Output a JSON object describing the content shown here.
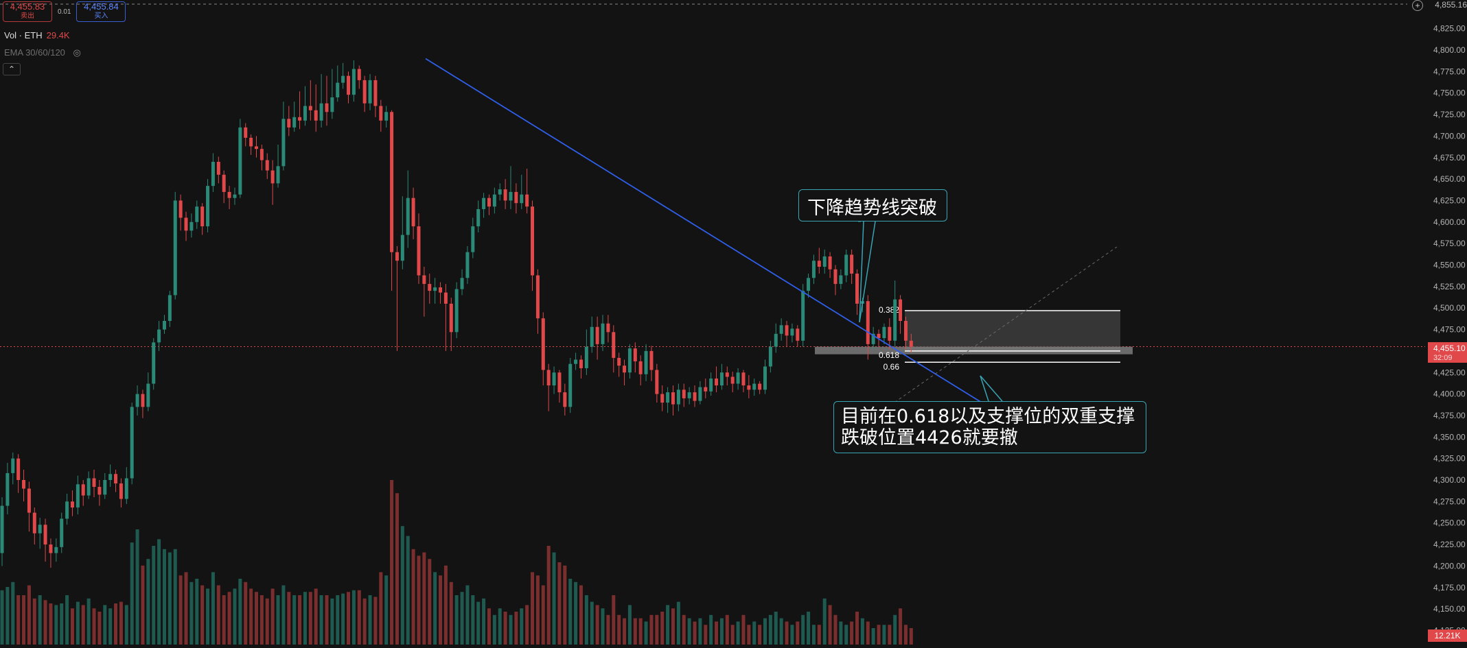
{
  "header": {
    "sell_price": "4,455.83",
    "sell_label": "卖出",
    "spread": "0.01",
    "buy_price": "4,455.84",
    "buy_label": "买入"
  },
  "legend": {
    "vol_label": "Vol · ETH",
    "vol_value": "29.4K",
    "ema_label": "EMA 30/60/120"
  },
  "price_axis": {
    "ticks": [
      "4,825.00",
      "4,800.00",
      "4,775.00",
      "4,750.00",
      "4,725.00",
      "4,700.00",
      "4,675.00",
      "4,650.00",
      "4,625.00",
      "4,600.00",
      "4,575.00",
      "4,550.00",
      "4,525.00",
      "4,500.00",
      "4,475.00",
      "4,450.00",
      "4,425.00",
      "4,400.00",
      "4,375.00",
      "4,350.00",
      "4,325.00",
      "4,300.00",
      "4,275.00",
      "4,250.00",
      "4,225.00",
      "4,200.00",
      "4,175.00",
      "4,150.00",
      "4,125.00"
    ],
    "top_label": "4,855.16",
    "current_price": "4,455.10",
    "countdown": "32:09",
    "volume_label": "12.21K"
  },
  "fib_labels": {
    "l0382": "0.382",
    "l0618": "0.618",
    "l066": "0.66"
  },
  "annotations": {
    "trendline_break": "下降趋势线突破",
    "support_line1": "目前在0.618以及支撑位的双重支撑",
    "support_line2": "跌破位置4426就要撤"
  },
  "colors": {
    "background": "#131313",
    "up": "#2b8a77",
    "down": "#e0484a",
    "trendline": "#2f5fe8",
    "annotation_border": "#39a4b4"
  },
  "chart_data": {
    "type": "candlestick",
    "symbol": "ETH",
    "ylim": [
      4125,
      4835
    ],
    "levels": [
      {
        "name": "0.382",
        "value": 4497
      },
      {
        "name": "0.618",
        "value": 4450
      },
      {
        "name": "0.66",
        "value": 4437
      },
      {
        "name": "support",
        "value": 4451
      },
      {
        "name": "current",
        "value": 4455.1
      }
    ],
    "trendline": {
      "from": 4790,
      "to": 4357
    },
    "candles": [
      [
        4215,
        4270,
        4200,
        4280
      ],
      [
        4270,
        4308,
        4260,
        4320
      ],
      [
        4308,
        4325,
        4295,
        4332
      ],
      [
        4325,
        4300,
        4285,
        4330
      ],
      [
        4300,
        4290,
        4275,
        4312
      ],
      [
        4290,
        4262,
        4240,
        4298
      ],
      [
        4262,
        4238,
        4225,
        4268
      ],
      [
        4238,
        4248,
        4220,
        4256
      ],
      [
        4248,
        4225,
        4205,
        4255
      ],
      [
        4225,
        4215,
        4198,
        4232
      ],
      [
        4215,
        4222,
        4205,
        4232
      ],
      [
        4222,
        4255,
        4215,
        4262
      ],
      [
        4255,
        4275,
        4248,
        4284
      ],
      [
        4275,
        4268,
        4258,
        4288
      ],
      [
        4268,
        4295,
        4260,
        4305
      ],
      [
        4295,
        4282,
        4270,
        4300
      ],
      [
        4282,
        4302,
        4278,
        4310
      ],
      [
        4302,
        4292,
        4280,
        4312
      ],
      [
        4292,
        4283,
        4270,
        4300
      ],
      [
        4283,
        4300,
        4278,
        4308
      ],
      [
        4300,
        4307,
        4292,
        4318
      ],
      [
        4307,
        4296,
        4286,
        4312
      ],
      [
        4296,
        4278,
        4268,
        4302
      ],
      [
        4278,
        4302,
        4272,
        4315
      ],
      [
        4302,
        4385,
        4295,
        4390
      ],
      [
        4385,
        4400,
        4375,
        4410
      ],
      [
        4400,
        4385,
        4372,
        4405
      ],
      [
        4385,
        4412,
        4380,
        4425
      ],
      [
        4412,
        4460,
        4405,
        4465
      ],
      [
        4460,
        4475,
        4450,
        4485
      ],
      [
        4475,
        4485,
        4470,
        4492
      ],
      [
        4485,
        4515,
        4478,
        4520
      ],
      [
        4515,
        4625,
        4510,
        4635
      ],
      [
        4625,
        4605,
        4590,
        4632
      ],
      [
        4605,
        4590,
        4578,
        4612
      ],
      [
        4590,
        4600,
        4582,
        4610
      ],
      [
        4600,
        4618,
        4592,
        4625
      ],
      [
        4618,
        4595,
        4585,
        4622
      ],
      [
        4595,
        4642,
        4588,
        4650
      ],
      [
        4642,
        4670,
        4635,
        4680
      ],
      [
        4670,
        4655,
        4645,
        4676
      ],
      [
        4655,
        4635,
        4622,
        4660
      ],
      [
        4635,
        4628,
        4615,
        4642
      ],
      [
        4628,
        4632,
        4620,
        4640
      ],
      [
        4632,
        4710,
        4628,
        4720
      ],
      [
        4710,
        4698,
        4688,
        4715
      ],
      [
        4698,
        4688,
        4678,
        4702
      ],
      [
        4688,
        4685,
        4675,
        4700
      ],
      [
        4685,
        4672,
        4660,
        4690
      ],
      [
        4672,
        4660,
        4650,
        4680
      ],
      [
        4660,
        4645,
        4620,
        4672
      ],
      [
        4645,
        4665,
        4640,
        4690
      ],
      [
        4665,
        4720,
        4660,
        4740
      ],
      [
        4720,
        4710,
        4700,
        4735
      ],
      [
        4710,
        4722,
        4705,
        4740
      ],
      [
        4722,
        4718,
        4708,
        4752
      ],
      [
        4718,
        4735,
        4712,
        4758
      ],
      [
        4735,
        4730,
        4718,
        4765
      ],
      [
        4730,
        4718,
        4705,
        4760
      ],
      [
        4718,
        4738,
        4710,
        4772
      ],
      [
        4738,
        4728,
        4712,
        4770
      ],
      [
        4728,
        4745,
        4720,
        4778
      ],
      [
        4745,
        4762,
        4740,
        4782
      ],
      [
        4762,
        4770,
        4755,
        4785
      ],
      [
        4770,
        4748,
        4738,
        4775
      ],
      [
        4748,
        4778,
        4740,
        4788
      ],
      [
        4778,
        4765,
        4755,
        4782
      ],
      [
        4765,
        4738,
        4728,
        4770
      ],
      [
        4738,
        4765,
        4730,
        4772
      ],
      [
        4765,
        4735,
        4722,
        4770
      ],
      [
        4735,
        4718,
        4705,
        4742
      ],
      [
        4718,
        4728,
        4710,
        4735
      ],
      [
        4728,
        4565,
        4520,
        4730
      ],
      [
        4565,
        4555,
        4450,
        4572
      ],
      [
        4555,
        4585,
        4545,
        4630
      ],
      [
        4585,
        4628,
        4570,
        4660
      ],
      [
        4628,
        4595,
        4580,
        4640
      ],
      [
        4595,
        4538,
        4528,
        4610
      ],
      [
        4538,
        4528,
        4490,
        4548
      ],
      [
        4528,
        4520,
        4505,
        4540
      ],
      [
        4520,
        4524,
        4505,
        4535
      ],
      [
        4524,
        4518,
        4505,
        4530
      ],
      [
        4518,
        4505,
        4450,
        4528
      ],
      [
        4505,
        4472,
        4450,
        4512
      ],
      [
        4472,
        4522,
        4465,
        4530
      ],
      [
        4522,
        4535,
        4515,
        4545
      ],
      [
        4535,
        4565,
        4528,
        4572
      ],
      [
        4565,
        4595,
        4558,
        4605
      ],
      [
        4595,
        4615,
        4588,
        4625
      ],
      [
        4615,
        4628,
        4605,
        4634
      ],
      [
        4628,
        4618,
        4608,
        4632
      ],
      [
        4618,
        4632,
        4610,
        4640
      ],
      [
        4632,
        4638,
        4625,
        4645
      ],
      [
        4638,
        4625,
        4615,
        4650
      ],
      [
        4625,
        4635,
        4615,
        4665
      ],
      [
        4635,
        4622,
        4610,
        4645
      ],
      [
        4622,
        4632,
        4615,
        4655
      ],
      [
        4632,
        4618,
        4610,
        4662
      ],
      [
        4618,
        4538,
        4520,
        4625
      ],
      [
        4538,
        4488,
        4470,
        4545
      ],
      [
        4488,
        4428,
        4410,
        4495
      ],
      [
        4428,
        4410,
        4380,
        4435
      ],
      [
        4410,
        4425,
        4400,
        4432
      ],
      [
        4425,
        4402,
        4390,
        4428
      ],
      [
        4402,
        4385,
        4375,
        4412
      ],
      [
        4385,
        4435,
        4378,
        4442
      ],
      [
        4435,
        4440,
        4428,
        4448
      ],
      [
        4440,
        4430,
        4418,
        4445
      ],
      [
        4430,
        4455,
        4422,
        4475
      ],
      [
        4455,
        4478,
        4448,
        4490
      ],
      [
        4478,
        4458,
        4440,
        4490
      ],
      [
        4458,
        4482,
        4450,
        4492
      ],
      [
        4482,
        4472,
        4460,
        4492
      ],
      [
        4472,
        4442,
        4425,
        4480
      ],
      [
        4442,
        4433,
        4420,
        4448
      ],
      [
        4433,
        4425,
        4410,
        4440
      ],
      [
        4425,
        4453,
        4418,
        4458
      ],
      [
        4453,
        4438,
        4425,
        4460
      ],
      [
        4438,
        4423,
        4410,
        4445
      ],
      [
        4423,
        4450,
        4415,
        4458
      ],
      [
        4450,
        4428,
        4415,
        4456
      ],
      [
        4428,
        4400,
        4390,
        4435
      ],
      [
        4400,
        4390,
        4380,
        4410
      ],
      [
        4390,
        4402,
        4378,
        4408
      ],
      [
        4402,
        4388,
        4375,
        4410
      ],
      [
        4388,
        4405,
        4380,
        4412
      ],
      [
        4405,
        4395,
        4385,
        4412
      ],
      [
        4395,
        4402,
        4388,
        4408
      ],
      [
        4402,
        4392,
        4385,
        4410
      ],
      [
        4392,
        4408,
        4388,
        4415
      ],
      [
        4408,
        4403,
        4395,
        4418
      ],
      [
        4403,
        4418,
        4398,
        4425
      ],
      [
        4418,
        4410,
        4402,
        4432
      ],
      [
        4410,
        4425,
        4405,
        4435
      ],
      [
        4425,
        4420,
        4410,
        4432
      ],
      [
        4420,
        4412,
        4402,
        4426
      ],
      [
        4412,
        4425,
        4405,
        4430
      ],
      [
        4425,
        4410,
        4402,
        4428
      ],
      [
        4410,
        4405,
        4395,
        4422
      ],
      [
        4405,
        4412,
        4398,
        4418
      ],
      [
        4412,
        4405,
        4400,
        4415
      ],
      [
        4405,
        4432,
        4400,
        4440
      ],
      [
        4432,
        4455,
        4425,
        4462
      ],
      [
        4455,
        4470,
        4448,
        4482
      ],
      [
        4470,
        4480,
        4462,
        4488
      ],
      [
        4480,
        4468,
        4455,
        4485
      ],
      [
        4468,
        4476,
        4460,
        4482
      ],
      [
        4476,
        4462,
        4455,
        4480
      ],
      [
        4462,
        4520,
        4455,
        4528
      ],
      [
        4520,
        4535,
        4512,
        4540
      ],
      [
        4535,
        4555,
        4528,
        4562
      ],
      [
        4555,
        4548,
        4540,
        4570
      ],
      [
        4548,
        4560,
        4540,
        4568
      ],
      [
        4560,
        4545,
        4535,
        4565
      ],
      [
        4545,
        4528,
        4515,
        4550
      ],
      [
        4528,
        4538,
        4522,
        4545
      ],
      [
        4538,
        4562,
        4530,
        4568
      ],
      [
        4562,
        4540,
        4528,
        4568
      ],
      [
        4540,
        4505,
        4492,
        4545
      ],
      [
        4505,
        4508,
        4495,
        4512
      ],
      [
        4508,
        4458,
        4440,
        4515
      ],
      [
        4458,
        4470,
        4452,
        4478
      ],
      [
        4470,
        4465,
        4455,
        4475
      ],
      [
        4465,
        4478,
        4458,
        4482
      ],
      [
        4478,
        4462,
        4452,
        4488
      ],
      [
        4462,
        4510,
        4455,
        4532
      ],
      [
        4510,
        4485,
        4470,
        4515
      ],
      [
        4485,
        4462,
        4452,
        4490
      ],
      [
        4462,
        4455,
        4448,
        4470
      ]
    ],
    "volumes": [
      33,
      35,
      38,
      30,
      30,
      36,
      28,
      30,
      27,
      25,
      24,
      25,
      30,
      22,
      26,
      24,
      28,
      22,
      20,
      24,
      22,
      25,
      26,
      24,
      62,
      70,
      48,
      52,
      60,
      64,
      58,
      56,
      58,
      42,
      44,
      38,
      40,
      36,
      34,
      44,
      36,
      30,
      32,
      34,
      40,
      38,
      34,
      32,
      30,
      28,
      34,
      30,
      36,
      32,
      30,
      30,
      32,
      32,
      34,
      30,
      30,
      28,
      30,
      31,
      32,
      33,
      33,
      28,
      30,
      29,
      44,
      42,
      100,
      92,
      72,
      66,
      58,
      54,
      56,
      52,
      44,
      42,
      48,
      38,
      30,
      32,
      36,
      30,
      26,
      28,
      22,
      18,
      22,
      20,
      18,
      20,
      22,
      24,
      44,
      42,
      36,
      60,
      56,
      50,
      48,
      40,
      38,
      36,
      30,
      26,
      24,
      22,
      18,
      30,
      18,
      16,
      24,
      16,
      16,
      14,
      18,
      18,
      20,
      24,
      22,
      26,
      18,
      16,
      14,
      16,
      12,
      18,
      14,
      16,
      18,
      12,
      14,
      18,
      12,
      14,
      12,
      16,
      18,
      20,
      16,
      14,
      12,
      14,
      18,
      20,
      12,
      12,
      28,
      24,
      18,
      14,
      12,
      14,
      20,
      16,
      14,
      10,
      12,
      12,
      12,
      18,
      22,
      12,
      10
    ]
  }
}
